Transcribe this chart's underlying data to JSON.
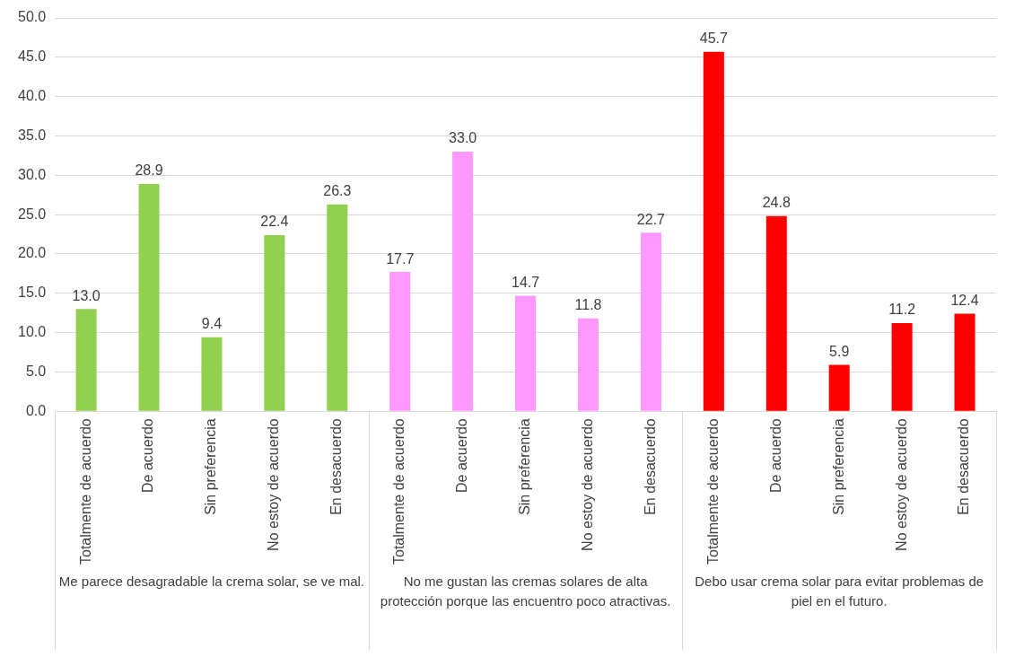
{
  "chart_data": {
    "type": "bar",
    "categories": [
      "Totalmente de acuerdo",
      "De acuerdo",
      "Sin preferencia",
      "No estoy de acuerdo",
      "En desacuerdo",
      "Totalmente de acuerdo",
      "De acuerdo",
      "Sin preferencia",
      "No estoy de acuerdo",
      "En desacuerdo",
      "Totalmente de acuerdo",
      "De acuerdo",
      "Sin preferencia",
      "No estoy de acuerdo",
      "En desacuerdo"
    ],
    "values": [
      13.0,
      28.9,
      9.4,
      22.4,
      26.3,
      17.7,
      33.0,
      14.7,
      11.8,
      22.7,
      45.7,
      24.8,
      5.9,
      11.2,
      12.4
    ],
    "value_labels": [
      "13.0",
      "28.9",
      "9.4",
      "22.4",
      "26.3",
      "17.7",
      "33.0",
      "14.7",
      "11.8",
      "22.7",
      "45.7",
      "24.8",
      "5.9",
      "11.2",
      "12.4"
    ],
    "colors": [
      "#92d050",
      "#92d050",
      "#92d050",
      "#92d050",
      "#92d050",
      "#ff99ff",
      "#ff99ff",
      "#ff99ff",
      "#ff99ff",
      "#ff99ff",
      "#ff0000",
      "#ff0000",
      "#ff0000",
      "#ff0000",
      "#ff0000"
    ],
    "ylim": [
      0,
      50
    ],
    "yticks": [
      {
        "value": 0,
        "label": "0.0"
      },
      {
        "value": 5,
        "label": "5.0"
      },
      {
        "value": 10,
        "label": "10.0"
      },
      {
        "value": 15,
        "label": "15.0"
      },
      {
        "value": 20,
        "label": "20.0"
      },
      {
        "value": 25,
        "label": "25.0"
      },
      {
        "value": 30,
        "label": "30.0"
      },
      {
        "value": 35,
        "label": "35.0"
      },
      {
        "value": 40,
        "label": "40.0"
      },
      {
        "value": 45,
        "label": "45.0"
      },
      {
        "value": 50,
        "label": "50.0"
      }
    ],
    "grid": "y",
    "legend": false,
    "annotations": [
      "Me parece desagradable la crema solar, se ve mal.",
      "No me gustan las cremas solares de alta protección porque las encuentro poco atractivas.",
      "Debo usar crema solar para evitar problemas de piel en el futuro."
    ]
  }
}
